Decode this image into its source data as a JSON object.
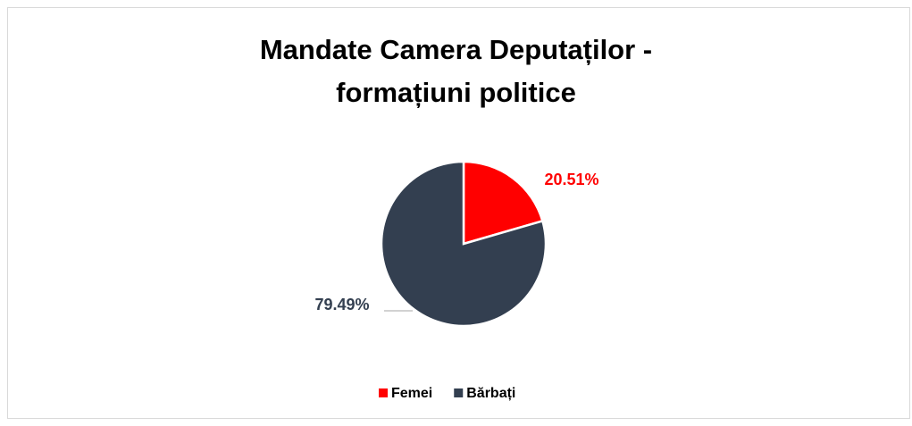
{
  "chart_data": {
    "type": "pie",
    "title": "Mandate Camera Deputaților - formațiuni politice",
    "categories": [
      "Femei",
      "Bărbați"
    ],
    "values": [
      20.51,
      79.49
    ],
    "value_labels": [
      "20.51%",
      "79.49%"
    ],
    "colors": [
      "#ff0000",
      "#333f50"
    ],
    "legend": "bottom"
  }
}
